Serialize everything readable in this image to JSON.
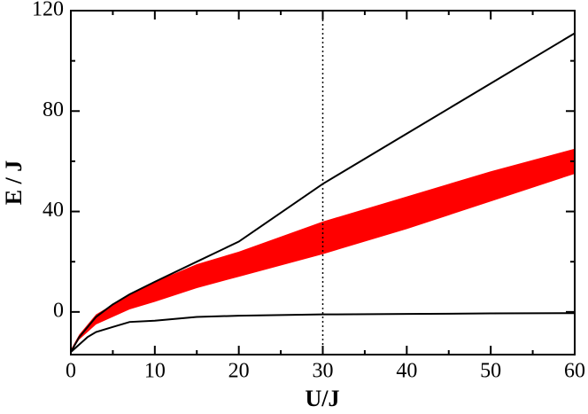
{
  "chart_data": {
    "type": "line",
    "xlabel": "U/J",
    "ylabel": "E / J",
    "xlim": [
      0,
      60
    ],
    "ylim": [
      -17,
      120
    ],
    "xticks": [
      0,
      10,
      20,
      30,
      40,
      50,
      60
    ],
    "yticks": [
      0,
      40,
      80,
      120
    ],
    "xminorticks": [
      5,
      15,
      25,
      35,
      45,
      55
    ],
    "yminorticks": [
      20,
      60,
      100
    ],
    "x": [
      0,
      1,
      2,
      3,
      5,
      7,
      10,
      15,
      20,
      30,
      40,
      50,
      60
    ],
    "series": [
      {
        "color": "#000000",
        "values": [
          -16,
          -10,
          -6,
          -2,
          3,
          7,
          12,
          20,
          28,
          51,
          71,
          91,
          111
        ]
      },
      {
        "color": "#000000",
        "values": [
          -16,
          -13,
          -10,
          -8,
          -6,
          -4,
          -3.5,
          -2,
          -1.5,
          -1,
          -0.8,
          -0.6,
          -0.5
        ]
      }
    ],
    "band": {
      "color": "#ff0000",
      "lower": [
        -16,
        -11,
        -8,
        -5,
        -2,
        1,
        4,
        9.5,
        14,
        23,
        33,
        44,
        55
      ],
      "upper": [
        -15,
        -9,
        -5,
        -1,
        3,
        7,
        12,
        19,
        24,
        36,
        46,
        56,
        65
      ]
    },
    "vlines": [
      30
    ]
  }
}
